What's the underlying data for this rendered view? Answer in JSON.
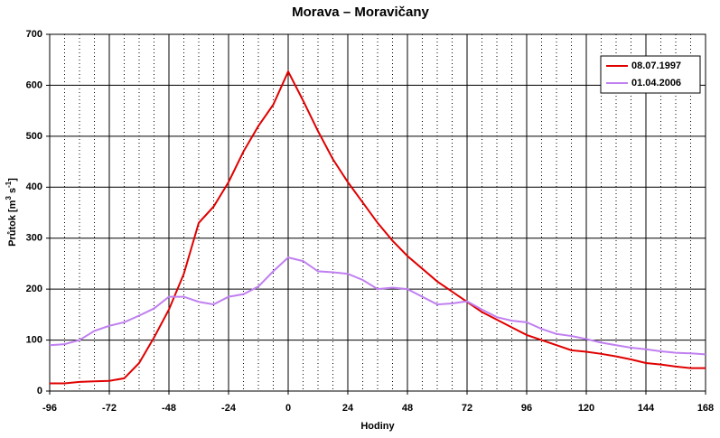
{
  "chart_data": {
    "type": "line",
    "title": "Morava – Moravičany",
    "xlabel": "Hodiny",
    "ylabel": [
      "Průtok [m",
      "3",
      " s",
      "-1",
      "]"
    ],
    "x": [
      -96,
      -90,
      -84,
      -78,
      -72,
      -66,
      -60,
      -54,
      -48,
      -42,
      -36,
      -30,
      -24,
      -18,
      -12,
      -6,
      0,
      6,
      12,
      18,
      24,
      30,
      36,
      42,
      48,
      54,
      60,
      66,
      72,
      78,
      84,
      90,
      96,
      102,
      108,
      114,
      120,
      126,
      132,
      138,
      144,
      150,
      156,
      162,
      168
    ],
    "series": [
      {
        "name": "08.07.1997",
        "color": "#e00000",
        "values": [
          15,
          15,
          18,
          19,
          20,
          25,
          55,
          105,
          160,
          230,
          330,
          362,
          410,
          470,
          520,
          562,
          627,
          570,
          510,
          455,
          410,
          370,
          330,
          295,
          265,
          240,
          215,
          195,
          175,
          155,
          140,
          125,
          110,
          100,
          90,
          80,
          77,
          73,
          68,
          62,
          55,
          52,
          48,
          45,
          45
        ]
      },
      {
        "name": "01.04.2006",
        "color": "#c080f0",
        "values": [
          90,
          92,
          100,
          118,
          128,
          135,
          148,
          162,
          185,
          185,
          175,
          170,
          185,
          190,
          205,
          235,
          262,
          255,
          235,
          233,
          230,
          218,
          200,
          203,
          200,
          185,
          170,
          172,
          176,
          160,
          145,
          138,
          135,
          122,
          112,
          108,
          102,
          95,
          90,
          85,
          82,
          78,
          75,
          74,
          72
        ]
      }
    ],
    "xlim": [
      -96,
      168
    ],
    "xticks": [
      -96,
      -72,
      -48,
      -24,
      0,
      24,
      48,
      72,
      96,
      120,
      144,
      168
    ],
    "ylim": [
      0,
      700
    ],
    "yticks": [
      0,
      100,
      200,
      300,
      400,
      500,
      600,
      700
    ],
    "grid": true,
    "legend": "upper right"
  }
}
